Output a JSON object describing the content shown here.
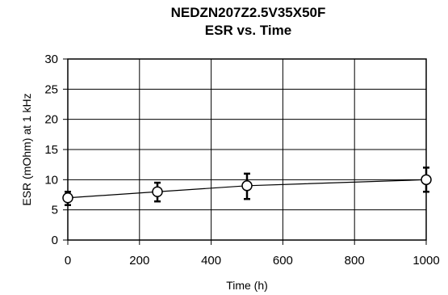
{
  "chart_data": {
    "type": "line",
    "title": "NEDZN207Z2.5V35X50F",
    "subtitle": "ESR vs. Time",
    "xlabel": "Time (h)",
    "ylabel": "ESR (mOhm) at 1 kHz",
    "xlim": [
      0,
      1000
    ],
    "ylim": [
      0,
      30
    ],
    "xticks": [
      0,
      200,
      400,
      600,
      800,
      1000
    ],
    "yticks": [
      0,
      5,
      10,
      15,
      20,
      25,
      30
    ],
    "grid": true,
    "series": [
      {
        "x": [
          0,
          250,
          500,
          1000
        ],
        "y": [
          7,
          8,
          9,
          10
        ],
        "error_low": [
          5.8,
          6.4,
          6.8,
          8.0
        ],
        "error_high": [
          8.0,
          9.5,
          11.0,
          12.0
        ],
        "marker": "open-circle",
        "color": "#000000"
      }
    ]
  }
}
